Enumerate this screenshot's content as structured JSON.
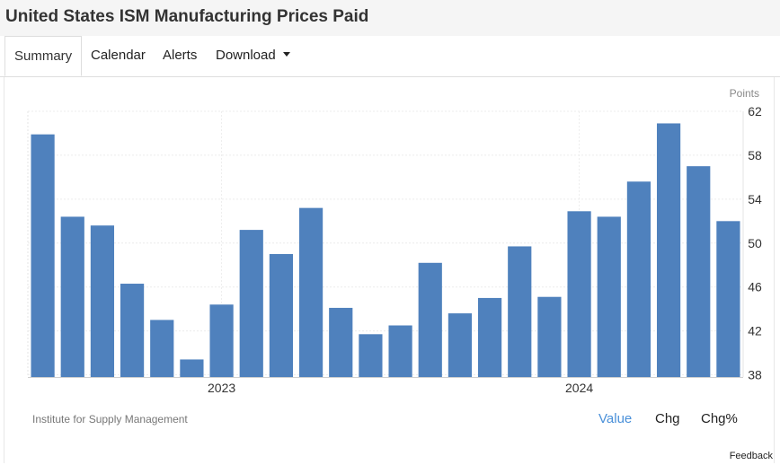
{
  "header": {
    "title": "United States ISM Manufacturing Prices Paid"
  },
  "tabs": [
    {
      "label": "Summary",
      "active": true
    },
    {
      "label": "Calendar"
    },
    {
      "label": "Alerts"
    },
    {
      "label": "Download"
    }
  ],
  "footer": {
    "source": "Institute for Supply Management",
    "view_tabs": [
      {
        "label": "Value",
        "active": true
      },
      {
        "label": "Chg"
      },
      {
        "label": "Chg%"
      }
    ],
    "feedback": "Feedback"
  },
  "colors": {
    "bar": "#4f81bd",
    "active_tab": "#4a90d9"
  },
  "chart_data": {
    "type": "bar",
    "unit": "Points",
    "x_ticks": [
      "2023",
      "2024"
    ],
    "yticks": [
      38,
      42,
      46,
      50,
      54,
      58,
      62
    ],
    "ylim": [
      37.8,
      62
    ],
    "values": [
      59.9,
      52.4,
      51.6,
      46.3,
      43.0,
      39.4,
      44.4,
      51.2,
      49.0,
      53.2,
      44.1,
      41.7,
      42.5,
      48.2,
      43.6,
      45.0,
      49.7,
      45.1,
      52.9,
      52.4,
      55.6,
      60.9,
      57.0,
      52.0
    ],
    "grid": true,
    "ylabel_position": "right"
  }
}
